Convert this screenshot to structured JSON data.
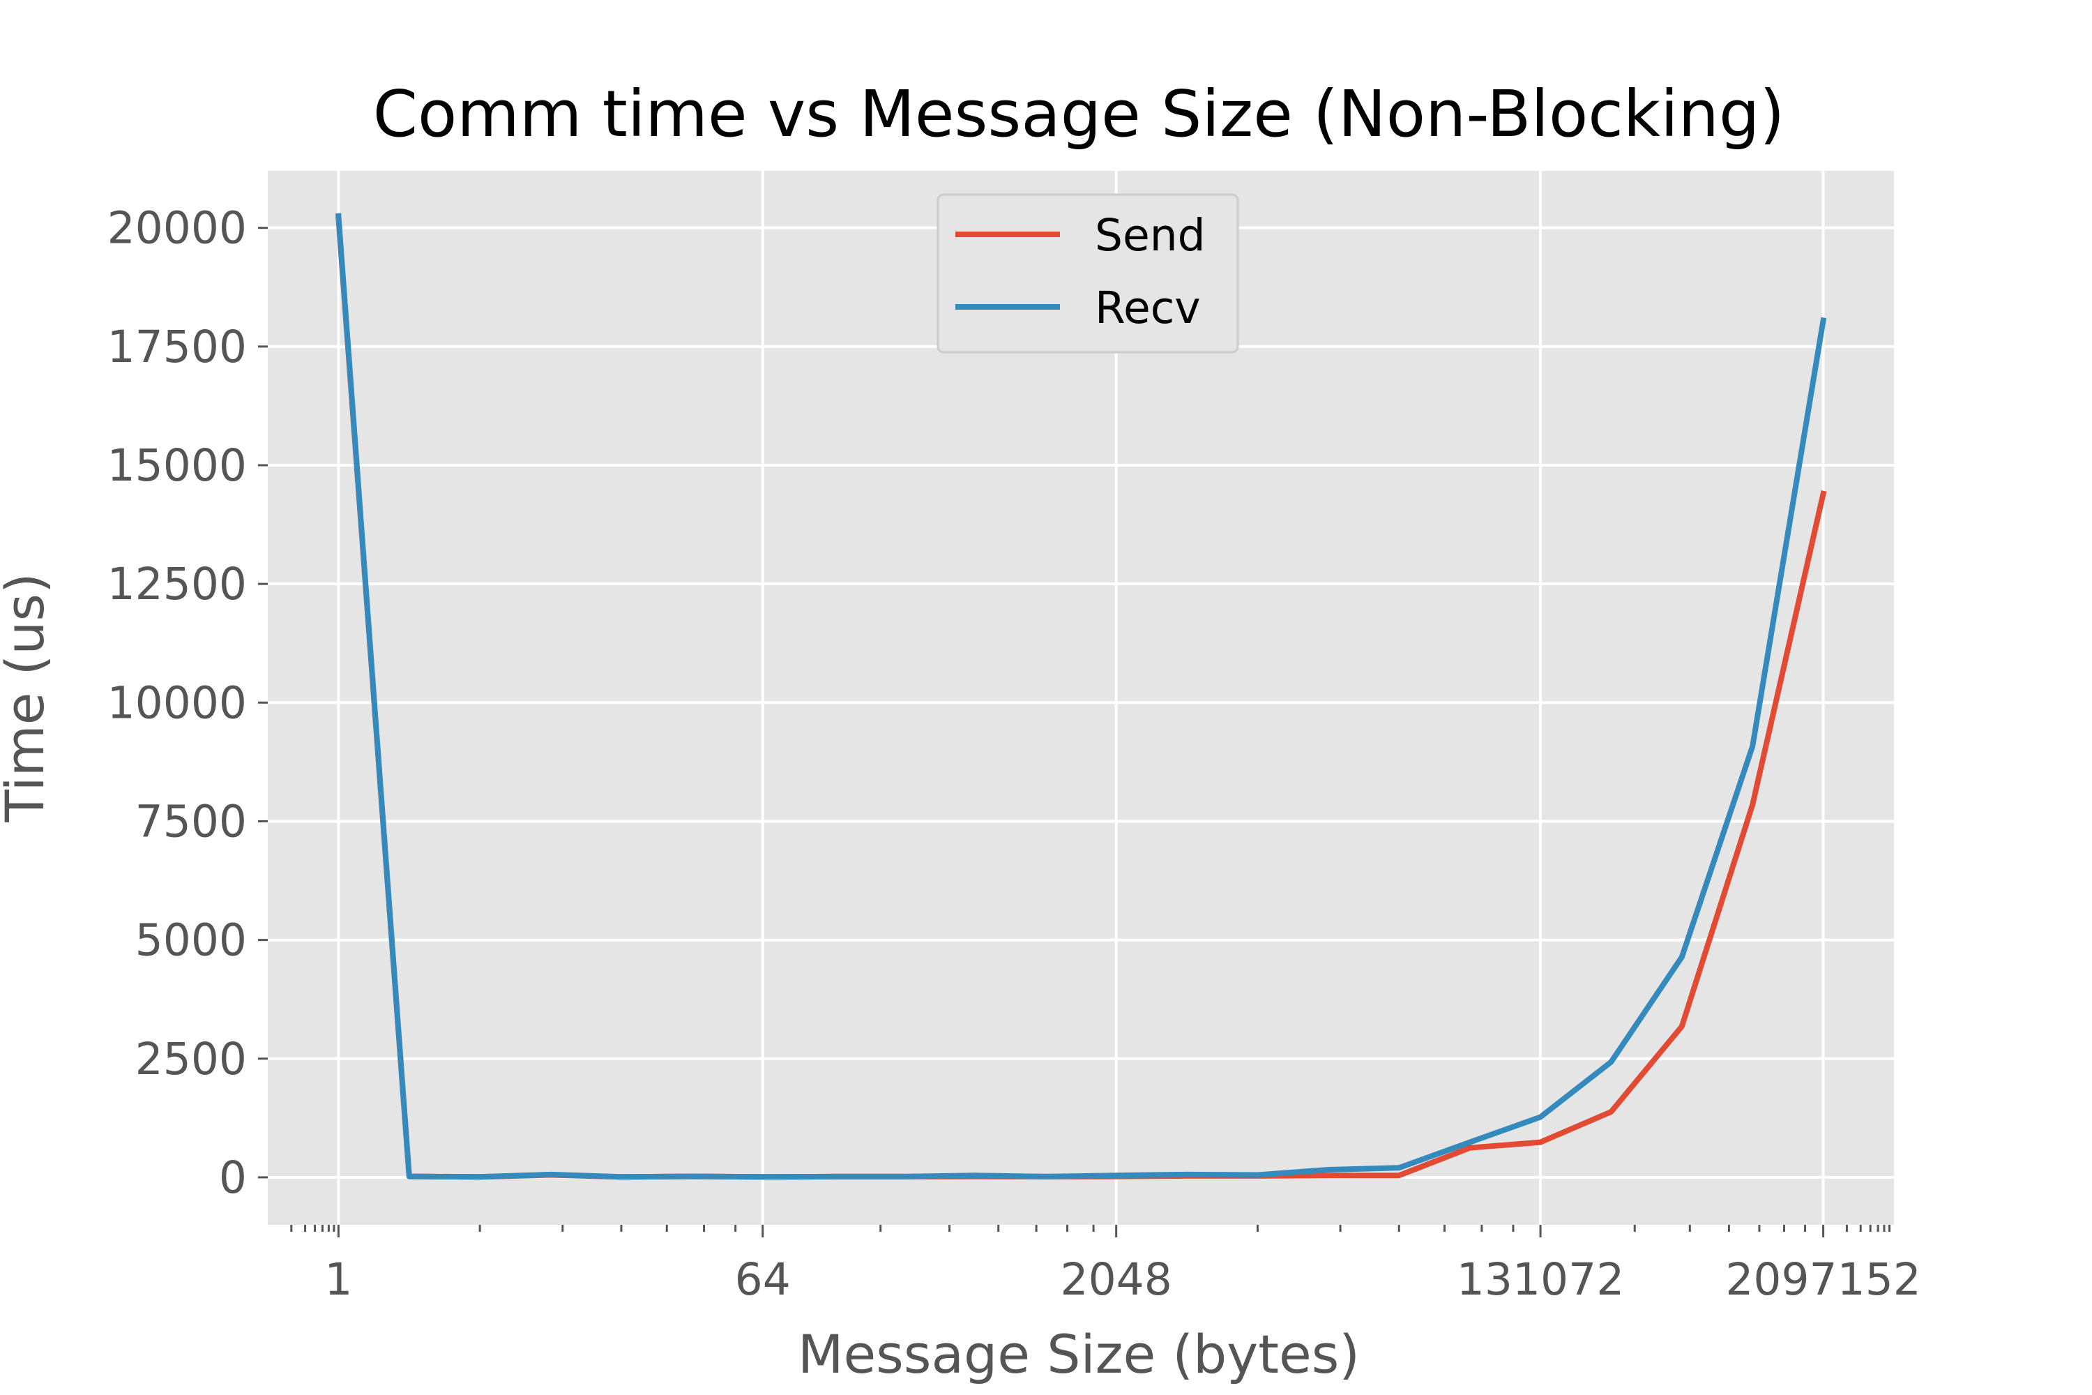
{
  "chart_data": {
    "type": "line",
    "title": "Comm time vs Message Size (Non-Blocking)",
    "xlabel": "Message Size (bytes)",
    "ylabel": "Time (us)",
    "x_scale": "log2",
    "xlim": [
      0.5,
      4194304
    ],
    "ylim": [
      -1000,
      21200
    ],
    "x_ticks": [
      {
        "value": 1,
        "label": "1"
      },
      {
        "value": 64,
        "label": "64"
      },
      {
        "value": 2048,
        "label": "2048"
      },
      {
        "value": 131072,
        "label": "131072"
      },
      {
        "value": 2097152,
        "label": "2097152"
      }
    ],
    "y_ticks": [
      {
        "value": 0,
        "label": "0"
      },
      {
        "value": 2500,
        "label": "2500"
      },
      {
        "value": 5000,
        "label": "5000"
      },
      {
        "value": 7500,
        "label": "7500"
      },
      {
        "value": 10000,
        "label": "10000"
      },
      {
        "value": 12500,
        "label": "12500"
      },
      {
        "value": 15000,
        "label": "15000"
      },
      {
        "value": 17500,
        "label": "17500"
      },
      {
        "value": 20000,
        "label": "20000"
      }
    ],
    "grid": true,
    "legend_position": "top-center",
    "x": [
      1,
      2,
      4,
      8,
      16,
      32,
      64,
      128,
      256,
      512,
      1024,
      2048,
      4096,
      8192,
      16384,
      32768,
      65536,
      131072,
      262144,
      524288,
      1048576,
      2097152
    ],
    "series": [
      {
        "name": "Send",
        "color": "#e24a33",
        "values": [
          20200,
          20,
          10,
          50,
          10,
          20,
          10,
          15,
          15,
          20,
          15,
          20,
          30,
          30,
          40,
          40,
          620,
          740,
          1380,
          3180,
          7850,
          14400
        ]
      },
      {
        "name": "Recv",
        "color": "#348abd",
        "values": [
          20250,
          20,
          10,
          60,
          10,
          20,
          10,
          15,
          15,
          40,
          15,
          40,
          60,
          50,
          160,
          200,
          740,
          1270,
          2430,
          4640,
          9080,
          18050
        ]
      }
    ]
  }
}
